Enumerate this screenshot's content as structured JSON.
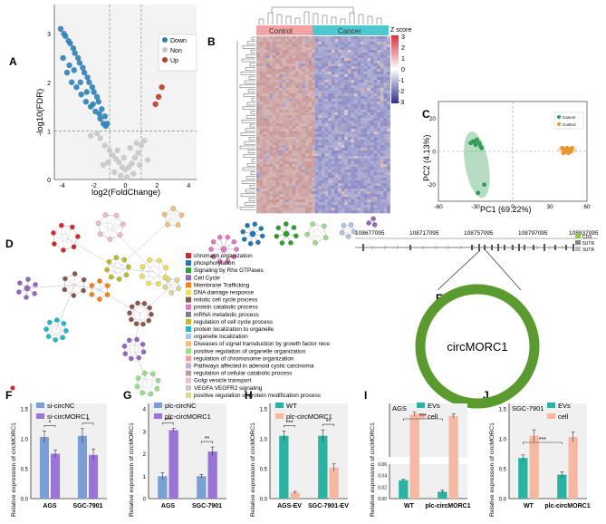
{
  "panels": {
    "A": "A",
    "B": "B",
    "C": "C",
    "D": "D",
    "E": "E",
    "F": "F",
    "G": "G",
    "H": "H",
    "I": "I",
    "J": "J"
  },
  "volcano": {
    "xlabel": "log2(FoldChange)",
    "ylabel": "-log10(FDR)",
    "legend": [
      "Down",
      "Non",
      "Up"
    ],
    "colors": {
      "down": "#2f7fb7",
      "non": "#c8c8c8",
      "up": "#c0392b"
    }
  },
  "heatmap": {
    "groups": [
      "Control",
      "Cancer"
    ],
    "group_colors": {
      "control": "#f4a3a3",
      "cancer": "#4ec8cf"
    },
    "legend_title": "Z score",
    "legend_ticks": [
      "3",
      "2",
      "1",
      "0",
      "-1",
      "-2",
      "-3"
    ]
  },
  "pca": {
    "xlabel": "PC1 (69.22%)",
    "ylabel": "PC2 (4.13%)",
    "legend": [
      "Cancer",
      "Control"
    ],
    "colors": {
      "cancer": "#2e9e53",
      "control": "#e8952b"
    }
  },
  "network": {
    "terms": [
      {
        "label": "chromatin organization",
        "color": "#d62728"
      },
      {
        "label": "phosphorylation",
        "color": "#1f77b4"
      },
      {
        "label": "Signaling by Rho GTPases",
        "color": "#2ca02c"
      },
      {
        "label": "Cell Cycle",
        "color": "#9467bd"
      },
      {
        "label": "Membrane Trafficking",
        "color": "#ff7f0e"
      },
      {
        "label": "DNA damage response",
        "color": "#f2e34c"
      },
      {
        "label": "mitotic cell cycle process",
        "color": "#8c564b"
      },
      {
        "label": "protein catabolic process",
        "color": "#e377c2"
      },
      {
        "label": "mRNA metabolic process",
        "color": "#7f7f7f"
      },
      {
        "label": "regulation of cell cycle process",
        "color": "#bcbd22"
      },
      {
        "label": "protein localization to organelle",
        "color": "#17becf"
      },
      {
        "label": "organelle localization",
        "color": "#aec7e8"
      },
      {
        "label": "Diseases of signal transduction by growth factor rece",
        "color": "#ffbb78"
      },
      {
        "label": "positive regulation of organelle organization",
        "color": "#98df8a"
      },
      {
        "label": "regulation of chromosome organization",
        "color": "#ff9896"
      },
      {
        "label": "Pathways affected in adenoid cystic carcinoma",
        "color": "#c5b0d5"
      },
      {
        "label": "regulation of cellular catabolic process",
        "color": "#c49c94"
      },
      {
        "label": "Golgi vesicle transport",
        "color": "#f7b6d2"
      },
      {
        "label": "VEGFA VEGFR2 signaling",
        "color": "#c7c7c7"
      },
      {
        "label": "positive regulation of protein modification process",
        "color": "#dbdb8d"
      }
    ]
  },
  "circ": {
    "coords": [
      "108677095",
      "108717095",
      "108757095",
      "108797095",
      "108837095"
    ],
    "legend": [
      "CDS",
      "5UTR",
      "3UTR"
    ],
    "name": "circMORC1",
    "ring_color": "#5a9a2e"
  },
  "colors": {
    "blue": "#7a9fd4",
    "purple": "#9a74d6",
    "teal": "#2ab3a3",
    "salmon": "#f6b8a0",
    "grey_bg": "#f0f0f0"
  },
  "chart_data": [
    {
      "panel": "A",
      "type": "scatter",
      "title": "",
      "xlabel": "log2(FoldChange)",
      "ylabel": "-log10(FDR)",
      "xlim": [
        -4.5,
        4.5
      ],
      "ylim": [
        0,
        3.6
      ],
      "xticks": [
        "-4",
        "-2",
        "0",
        "2",
        "4"
      ],
      "yticks": [
        "0",
        "1",
        "2",
        "3"
      ],
      "threshold_lines": {
        "x": [
          -1,
          1
        ],
        "y": 1
      },
      "series": [
        {
          "name": "Down",
          "x": [
            -4.1,
            -3.9,
            -3.8,
            -3.6,
            -3.5,
            -3.3,
            -3.2,
            -3.0,
            -2.9,
            -2.7,
            -2.6,
            -2.4,
            -2.3,
            -2.1,
            -2.0,
            -1.8,
            -1.7,
            -1.5,
            -1.3,
            -1.15,
            -3.7,
            -3.4,
            -3.1,
            -2.8,
            -2.5,
            -2.2,
            -1.9,
            -1.6,
            -1.4,
            -3.95,
            -3.55,
            -3.25,
            -2.85,
            -2.45,
            -2.05,
            -1.65,
            -1.25
          ],
          "y": [
            3.1,
            3.0,
            2.95,
            2.85,
            2.8,
            2.7,
            2.6,
            2.5,
            2.4,
            2.3,
            2.2,
            2.1,
            2.0,
            1.9,
            1.8,
            1.7,
            1.6,
            1.45,
            1.3,
            1.15,
            2.2,
            2.0,
            1.9,
            1.75,
            1.6,
            1.5,
            1.4,
            1.25,
            1.15,
            2.5,
            2.35,
            2.25,
            2.0,
            1.8,
            1.55,
            1.35,
            1.1
          ]
        },
        {
          "name": "Non",
          "x": [
            -1.6,
            -1.3,
            -1.0,
            -0.8,
            -0.6,
            -0.4,
            -0.2,
            0.0,
            0.2,
            0.4,
            0.6,
            0.8,
            1.0,
            1.2,
            -0.7,
            -0.3,
            0.1,
            0.5,
            0.9,
            -2.2,
            -1.8,
            -0.5,
            0.3,
            0.7,
            -0.1,
            -1.1,
            -1.4,
            1.4
          ],
          "y": [
            0.85,
            0.7,
            0.6,
            0.5,
            0.42,
            0.35,
            0.25,
            0.2,
            0.25,
            0.33,
            0.45,
            0.55,
            0.7,
            0.8,
            0.15,
            0.08,
            0.05,
            0.12,
            0.3,
            0.9,
            0.95,
            0.6,
            0.65,
            0.75,
            0.45,
            0.35,
            0.3,
            0.4
          ]
        },
        {
          "name": "Up",
          "x": [
            1.9,
            2.1,
            2.3
          ],
          "y": [
            1.55,
            1.7,
            1.9
          ]
        }
      ]
    },
    {
      "panel": "C",
      "type": "scatter",
      "xlabel": "PC1 (69.22%)",
      "ylabel": "PC2 (4.13%)",
      "xlim": [
        -60,
        60
      ],
      "ylim": [
        -30,
        30
      ],
      "xticks": [
        "-60",
        "-30",
        "0",
        "30",
        "60"
      ],
      "yticks": [
        "-20",
        "0",
        "20"
      ],
      "series": [
        {
          "name": "Cancer",
          "x": [
            -34,
            -32,
            -30,
            -29,
            -27,
            -26,
            -25,
            -23,
            -28,
            -31
          ],
          "y": [
            5,
            6,
            4,
            7,
            5,
            3,
            2,
            -20,
            -25,
            6
          ]
        },
        {
          "name": "Control",
          "x": [
            40,
            42,
            43,
            44,
            45,
            46,
            47,
            48,
            41,
            45
          ],
          "y": [
            2,
            1,
            0,
            2,
            -1,
            1,
            0,
            2,
            -1,
            0
          ]
        }
      ]
    },
    {
      "panel": "F",
      "type": "bar",
      "ylabel": "Relative expression of circMORC1",
      "categories": [
        "AGS",
        "SGC-7901"
      ],
      "ylim": [
        0,
        1.5
      ],
      "yticks": [
        "0.0",
        "0.5",
        "1.0",
        "1.5"
      ],
      "series": [
        {
          "name": "si-circNC",
          "values": [
            1.03,
            1.05
          ],
          "err": [
            0.1,
            0.12
          ]
        },
        {
          "name": "si-circMORC1",
          "values": [
            0.75,
            0.73
          ],
          "err": [
            0.06,
            0.1
          ]
        }
      ],
      "significance": [
        "*",
        "*"
      ]
    },
    {
      "panel": "G",
      "type": "bar",
      "ylabel": "Relative expression of circMORC1",
      "categories": [
        "AGS",
        "SGC-7901"
      ],
      "ylim": [
        0,
        4
      ],
      "yticks": [
        "0",
        "1",
        "2",
        "3",
        "4"
      ],
      "series": [
        {
          "name": "plc-circNC",
          "values": [
            1.0,
            1.0
          ],
          "err": [
            0.15,
            0.08
          ]
        },
        {
          "name": "plc-circMORC1",
          "values": [
            3.05,
            2.1
          ],
          "err": [
            0.08,
            0.2
          ]
        }
      ],
      "significance": [
        "***",
        "**"
      ]
    },
    {
      "panel": "H",
      "type": "bar",
      "ylabel": "Relative expression of circMORC1",
      "categories": [
        "AGS-EV",
        "SGC-7901-EV"
      ],
      "ylim": [
        0,
        1.5
      ],
      "yticks": [
        "0.0",
        "0.5",
        "1.0",
        "1.5"
      ],
      "series": [
        {
          "name": "WT",
          "values": [
            1.05,
            1.05
          ],
          "err": [
            0.08,
            0.1
          ]
        },
        {
          "name": "plc-circMORC1",
          "values": [
            0.1,
            0.52
          ],
          "err": [
            0.02,
            0.06
          ]
        }
      ],
      "significance": [
        "***",
        "**"
      ]
    },
    {
      "panel": "I",
      "type": "bar",
      "title": "AGS",
      "ylabel": "Relative expression of circMORC1",
      "categories": [
        "WT",
        "plc-circMORC1"
      ],
      "y_axis_break": [
        0.06,
        0.1
      ],
      "yticks": [
        "0.00",
        "0.02",
        "0.04",
        "0.06"
      ],
      "series": [
        {
          "name": "EVs",
          "values": [
            0.032,
            0.012
          ],
          "err": [
            0.002,
            0.003
          ]
        },
        {
          "name": "cell",
          "values": [
            0.16,
            0.158
          ],
          "err": [
            0.003,
            0.003
          ]
        }
      ],
      "significance": [
        "***"
      ]
    },
    {
      "panel": "J",
      "type": "bar",
      "title": "SGC-7901",
      "ylabel": "Relative expression of circMORC1",
      "categories": [
        "WT",
        "plc-circMORC1"
      ],
      "ylim": [
        0,
        1.5
      ],
      "yticks": [
        "0.0",
        "0.5",
        "1.0",
        "1.5"
      ],
      "series": [
        {
          "name": "EVs",
          "values": [
            0.68,
            0.4
          ],
          "err": [
            0.05,
            0.05
          ]
        },
        {
          "name": "cell",
          "values": [
            1.05,
            1.03
          ],
          "err": [
            0.1,
            0.08
          ]
        }
      ],
      "significance": [
        "***"
      ]
    }
  ]
}
